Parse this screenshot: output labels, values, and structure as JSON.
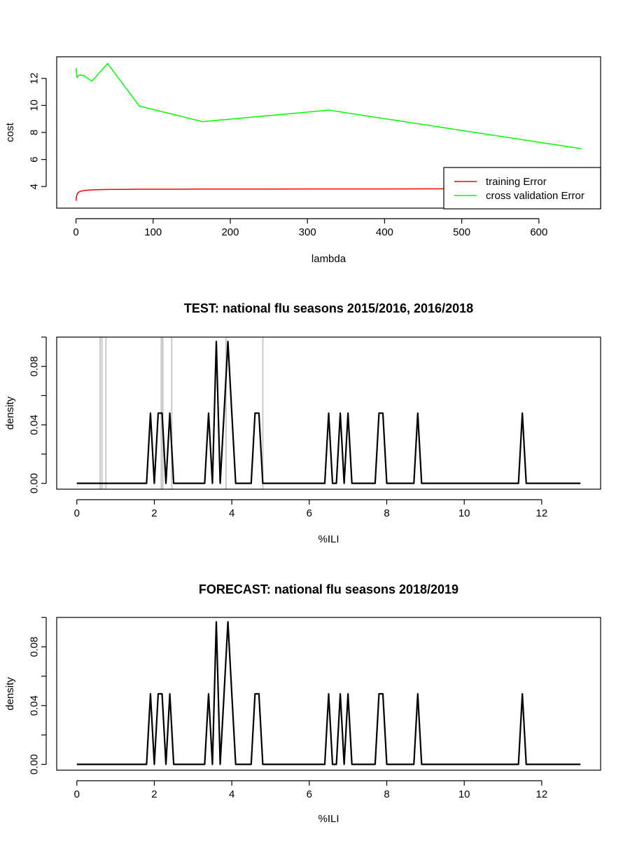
{
  "colors": {
    "training": "#ff0000",
    "cv": "#00ff00",
    "density": "#000000",
    "test_vlines": "#c8c8c8",
    "frame": "#000000"
  },
  "chart_data": [
    {
      "type": "line",
      "title": "",
      "xlabel": "lambda",
      "ylabel": "cost",
      "xlim": [
        -25,
        680
      ],
      "ylim": [
        2.4,
        13.6
      ],
      "x_ticks": [
        0,
        100,
        200,
        300,
        400,
        500,
        600
      ],
      "y_ticks": [
        4,
        6,
        8,
        10,
        12
      ],
      "legend": {
        "position": "bottom-right"
      },
      "series": [
        {
          "name": "training Error",
          "color_key": "training",
          "x": [
            0,
            0.5,
            1,
            2,
            4,
            6,
            10,
            15,
            20,
            30,
            40,
            60,
            80,
            120,
            160,
            240,
            320,
            400,
            480,
            560,
            655
          ],
          "y": [
            2.95,
            3.2,
            3.35,
            3.5,
            3.6,
            3.65,
            3.7,
            3.73,
            3.75,
            3.77,
            3.78,
            3.79,
            3.8,
            3.8,
            3.81,
            3.81,
            3.82,
            3.82,
            3.83,
            3.83,
            3.84
          ]
        },
        {
          "name": "cross validation Error",
          "color_key": "cv",
          "x": [
            0,
            1.3,
            2.6,
            5.1,
            10.2,
            20.5,
            41,
            82,
            164,
            328,
            655
          ],
          "y": [
            12.75,
            12.05,
            12.2,
            12.25,
            12.2,
            11.8,
            13.1,
            9.95,
            8.8,
            9.65,
            6.8
          ]
        }
      ]
    },
    {
      "type": "line",
      "title": "TEST: national flu seasons 2015/2016, 2016/2018",
      "xlabel": "%ILI",
      "ylabel": "density",
      "xlim": [
        -0.52,
        13.52
      ],
      "ylim": [
        -0.004,
        0.1
      ],
      "x_ticks": [
        0,
        2,
        4,
        6,
        8,
        10,
        12
      ],
      "y_ticks": [
        0.0,
        0.02,
        0.04,
        0.06,
        0.08,
        0.1
      ],
      "y_tick_labels": [
        "0.00",
        "",
        "0.04",
        "",
        "0.08",
        ""
      ],
      "vlines": [
        0.6,
        0.65,
        0.75,
        2.18,
        2.22,
        2.45,
        3.85,
        4.8
      ],
      "series": [
        {
          "color_key": "density",
          "x": [
            0,
            1.8,
            1.9,
            2.0,
            2.1,
            2.2,
            2.3,
            2.4,
            2.5,
            3.3,
            3.4,
            3.5,
            3.6,
            3.7,
            3.8,
            3.9,
            4.0,
            4.1,
            4.5,
            4.6,
            4.7,
            4.8,
            6.4,
            6.5,
            6.6,
            6.7,
            6.8,
            6.9,
            7.0,
            7.1,
            7.7,
            7.8,
            7.9,
            8.0,
            8.7,
            8.8,
            8.9,
            11.4,
            11.5,
            11.6,
            13.0
          ],
          "y": [
            0,
            0,
            0.048,
            0,
            0.048,
            0.048,
            0,
            0.048,
            0,
            0,
            0.048,
            0,
            0.097,
            0,
            0.048,
            0.097,
            0.048,
            0,
            0,
            0.048,
            0.048,
            0,
            0,
            0.048,
            0,
            0,
            0.048,
            0,
            0.048,
            0,
            0,
            0.048,
            0.048,
            0,
            0,
            0.048,
            0,
            0,
            0.048,
            0,
            0
          ]
        }
      ]
    },
    {
      "type": "line",
      "title": "FORECAST: national flu seasons 2018/2019",
      "xlabel": "%ILI",
      "ylabel": "density",
      "xlim": [
        -0.52,
        13.52
      ],
      "ylim": [
        -0.004,
        0.1
      ],
      "x_ticks": [
        0,
        2,
        4,
        6,
        8,
        10,
        12
      ],
      "y_ticks": [
        0.0,
        0.02,
        0.04,
        0.06,
        0.08,
        0.1
      ],
      "y_tick_labels": [
        "0.00",
        "",
        "0.04",
        "",
        "0.08",
        ""
      ],
      "series": [
        {
          "color_key": "density",
          "x": [
            0,
            1.8,
            1.9,
            2.0,
            2.1,
            2.2,
            2.3,
            2.4,
            2.5,
            3.3,
            3.4,
            3.5,
            3.6,
            3.7,
            3.8,
            3.9,
            4.0,
            4.1,
            4.5,
            4.6,
            4.7,
            4.8,
            6.4,
            6.5,
            6.6,
            6.7,
            6.8,
            6.9,
            7.0,
            7.1,
            7.7,
            7.8,
            7.9,
            8.0,
            8.7,
            8.8,
            8.9,
            11.4,
            11.5,
            11.6,
            13.0
          ],
          "y": [
            0,
            0,
            0.048,
            0,
            0.048,
            0.048,
            0,
            0.048,
            0,
            0,
            0.048,
            0,
            0.097,
            0,
            0.048,
            0.097,
            0.048,
            0,
            0,
            0.048,
            0.048,
            0,
            0,
            0.048,
            0,
            0,
            0.048,
            0,
            0.048,
            0,
            0,
            0.048,
            0.048,
            0,
            0,
            0.048,
            0,
            0,
            0.048,
            0,
            0
          ]
        }
      ]
    }
  ]
}
